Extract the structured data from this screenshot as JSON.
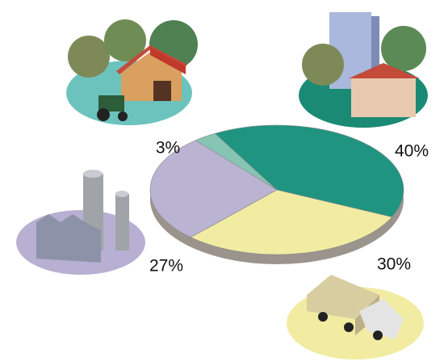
{
  "chart_data": {
    "type": "pie",
    "values": [
      3,
      40,
      30,
      27
    ],
    "value_labels": [
      "3%",
      "40%",
      "30%",
      "27%"
    ],
    "colors": [
      "#86c4b4",
      "#1f9480",
      "#f2eca2",
      "#bab3d2"
    ]
  }
}
